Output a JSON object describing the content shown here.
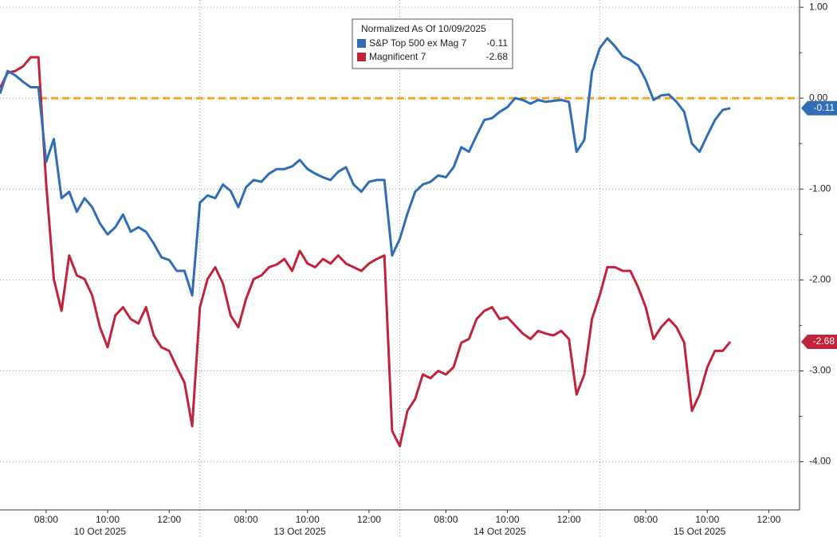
{
  "chart_data": {
    "type": "line",
    "legend_title": "Normalized As Of 10/09/2025",
    "x": [
      0,
      0.25,
      0.5,
      0.75,
      1,
      1.25,
      1.5,
      1.75,
      2,
      2.25,
      2.5,
      2.75,
      3,
      3.25,
      3.5,
      3.75,
      4,
      4.25,
      4.5,
      4.75,
      5,
      5.25,
      5.5,
      5.75,
      6,
      6.25,
      6.5,
      6.75,
      7,
      7.25,
      7.5,
      7.75,
      8,
      8.25,
      8.5,
      8.75,
      9,
      9.25,
      9.5,
      9.75,
      10,
      10.25,
      10.5,
      10.75,
      11,
      11.25,
      11.5,
      11.75,
      12,
      12.25,
      12.5,
      12.75,
      13,
      13.25,
      13.5,
      13.75,
      14,
      14.25,
      14.5,
      14.75,
      15,
      15.25,
      15.5,
      15.75,
      16,
      16.25,
      16.5,
      16.75,
      17,
      17.25,
      17.5,
      17.75,
      18,
      18.25,
      18.5,
      18.75,
      19,
      19.25,
      19.5,
      19.75,
      20,
      20.25,
      20.5,
      20.75,
      21,
      21.25,
      21.5,
      21.75,
      22,
      22.25,
      22.5,
      22.75,
      23,
      23.25,
      23.5,
      23.75
    ],
    "series": [
      {
        "name": "S&P Top 500 ex Mag 7",
        "color": "#2f6db5",
        "values": [
          0.05,
          0.3,
          0.25,
          0.18,
          0.12,
          0.12,
          -0.7,
          -0.45,
          -1.1,
          -1.03,
          -1.25,
          -1.1,
          -1.2,
          -1.38,
          -1.5,
          -1.42,
          -1.28,
          -1.47,
          -1.42,
          -1.47,
          -1.6,
          -1.75,
          -1.78,
          -1.9,
          -1.9,
          -2.17,
          -1.15,
          -1.07,
          -1.1,
          -0.95,
          -1.02,
          -1.2,
          -0.98,
          -0.9,
          -0.92,
          -0.83,
          -0.78,
          -0.78,
          -0.75,
          -0.68,
          -0.78,
          -0.83,
          -0.87,
          -0.9,
          -0.81,
          -0.76,
          -0.95,
          -1.03,
          -0.92,
          -0.9,
          -0.9,
          -1.73,
          -1.55,
          -1.27,
          -1.03,
          -0.95,
          -0.92,
          -0.85,
          -0.87,
          -0.76,
          -0.54,
          -0.59,
          -0.41,
          -0.24,
          -0.22,
          -0.15,
          -0.1,
          0,
          -0.02,
          -0.06,
          -0.02,
          -0.04,
          -0.03,
          -0.02,
          -0.04,
          -0.59,
          -0.46,
          0.29,
          0.55,
          0.66,
          0.57,
          0.46,
          0.42,
          0.36,
          0.2,
          -0.02,
          0.03,
          0.04,
          -0.04,
          -0.15,
          -0.5,
          -0.59,
          -0.41,
          -0.24,
          -0.13,
          -0.11
        ]
      },
      {
        "name": "Magnificent 7",
        "color": "#c0233a",
        "values": [
          0.11,
          0.28,
          0.3,
          0.35,
          0.45,
          0.45,
          -0.94,
          -1.99,
          -2.34,
          -1.73,
          -1.95,
          -1.99,
          -2.17,
          -2.52,
          -2.74,
          -2.39,
          -2.3,
          -2.43,
          -2.48,
          -2.3,
          -2.61,
          -2.74,
          -2.78,
          -2.96,
          -3.13,
          -3.61,
          -2.3,
          -1.99,
          -1.86,
          -2.04,
          -2.39,
          -2.52,
          -2.21,
          -1.99,
          -1.95,
          -1.86,
          -1.83,
          -1.77,
          -1.9,
          -1.68,
          -1.82,
          -1.86,
          -1.77,
          -1.82,
          -1.73,
          -1.82,
          -1.86,
          -1.9,
          -1.82,
          -1.77,
          -1.73,
          -3.66,
          -3.83,
          -3.44,
          -3.31,
          -3.04,
          -3.08,
          -3,
          -3.04,
          -2.96,
          -2.69,
          -2.65,
          -2.43,
          -2.34,
          -2.3,
          -2.43,
          -2.41,
          -2.5,
          -2.59,
          -2.65,
          -2.56,
          -2.59,
          -2.61,
          -2.56,
          -2.65,
          -3.26,
          -3.04,
          -2.43,
          -2.17,
          -1.86,
          -1.86,
          -1.9,
          -1.9,
          -2.08,
          -2.3,
          -2.65,
          -2.52,
          -2.43,
          -2.52,
          -2.69,
          -3.44,
          -3.26,
          -2.96,
          -2.78,
          -2.78,
          -2.68
        ]
      }
    ],
    "xlim": [
      0,
      26
    ],
    "xticks": [
      {
        "value": 1.5,
        "label": "08:00"
      },
      {
        "value": 3.5,
        "label": "10:00"
      },
      {
        "value": 5.5,
        "label": "12:00"
      },
      {
        "value": 8,
        "label": "08:00"
      },
      {
        "value": 10,
        "label": "10:00"
      },
      {
        "value": 12,
        "label": "12:00"
      },
      {
        "value": 14.5,
        "label": "08:00"
      },
      {
        "value": 16.5,
        "label": "10:00"
      },
      {
        "value": 18.5,
        "label": "12:00"
      },
      {
        "value": 21,
        "label": "08:00"
      },
      {
        "value": 23,
        "label": "10:00"
      },
      {
        "value": 25,
        "label": "12:00"
      }
    ],
    "day_labels": [
      {
        "value": 3.25,
        "label": "10 Oct 2025"
      },
      {
        "value": 9.75,
        "label": "13 Oct 2025"
      },
      {
        "value": 16.25,
        "label": "14 Oct 2025"
      },
      {
        "value": 22.75,
        "label": "15 Oct 2025"
      }
    ],
    "session_breaks": [
      6.5,
      13,
      19.5
    ],
    "ylim": [
      -4.53,
      1.08
    ],
    "yticks": [
      {
        "value": 1,
        "label": "1.00"
      },
      {
        "value": 0,
        "label": "0.00"
      },
      {
        "value": -1,
        "label": "-1.00"
      },
      {
        "value": -2,
        "label": "-2.00"
      },
      {
        "value": -3,
        "label": "-3.00"
      },
      {
        "value": -4,
        "label": "-4.00"
      }
    ],
    "reference_line": {
      "value": 0,
      "color": "#f5a623"
    },
    "grid": true
  }
}
